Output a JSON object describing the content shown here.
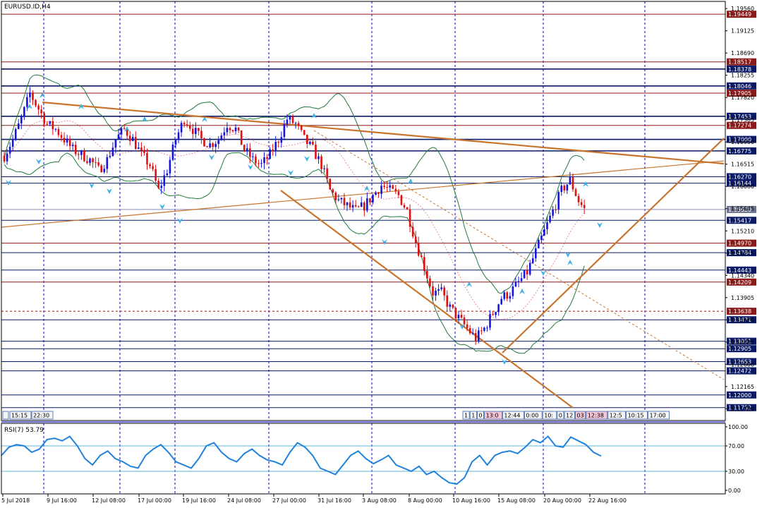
{
  "window": {
    "title": "EURUSD.ID,H4"
  },
  "colors": {
    "bull": "#1515dd",
    "bear": "#dd1111",
    "grid": "#0000cc",
    "trend": "#c7742e",
    "bands": "#1f7a3a",
    "rsi": "#1e82dc",
    "level_navy": "#0a1a66",
    "level_red": "#8b1a1a",
    "fractal": "#3bb0e8"
  },
  "price_axis": {
    "labels": [
      "1.19560",
      "1.19125",
      "1.18690",
      "1.18255",
      "1.17820",
      "1.17385",
      "1.16950",
      "1.16515",
      "1.16080",
      "1.15645",
      "1.15210",
      "1.14775",
      "1.14340",
      "1.13905",
      "1.13470",
      "1.13035",
      "1.12600",
      "1.12165",
      "1.11730"
    ]
  },
  "levels": [
    {
      "value": 1.19449,
      "label": "1.19449",
      "kind": "red"
    },
    {
      "value": 1.18517,
      "label": "1.18517",
      "kind": "red"
    },
    {
      "value": 1.18378,
      "label": "1.18378",
      "kind": "navy"
    },
    {
      "value": 1.18046,
      "label": "1.18046",
      "kind": "navy"
    },
    {
      "value": 1.17905,
      "label": "1.17905",
      "kind": "red"
    },
    {
      "value": 1.17453,
      "label": "1.17453",
      "kind": "navy"
    },
    {
      "value": 1.17274,
      "label": "1.17274",
      "kind": "red"
    },
    {
      "value": 1.17,
      "label": "1.17000",
      "kind": "navy"
    },
    {
      "value": 1.16775,
      "label": "1.16775",
      "kind": "navy"
    },
    {
      "value": 1.1627,
      "label": "1.16270",
      "kind": "navy"
    },
    {
      "value": 1.16144,
      "label": "1.16144",
      "kind": "navy"
    },
    {
      "value": 1.15629,
      "label": "1.15629",
      "kind": "gray"
    },
    {
      "value": 1.15417,
      "label": "1.15417",
      "kind": "navy"
    },
    {
      "value": 1.1497,
      "label": "1.14970",
      "kind": "red"
    },
    {
      "value": 1.14784,
      "label": "1.14784",
      "kind": "navy"
    },
    {
      "value": 1.14443,
      "label": "1.14443",
      "kind": "navy"
    },
    {
      "value": 1.14209,
      "label": "1.14209",
      "kind": "red"
    },
    {
      "value": 1.13638,
      "label": "1.13638",
      "kind": "reddash"
    },
    {
      "value": 1.13471,
      "label": "1.13471",
      "kind": "navy"
    },
    {
      "value": 1.13051,
      "label": "1.13051",
      "kind": "navy"
    },
    {
      "value": 1.12905,
      "label": "1.12905",
      "kind": "navy"
    },
    {
      "value": 1.12653,
      "label": "1.12653",
      "kind": "navy"
    },
    {
      "value": 1.12472,
      "label": "1.12472",
      "kind": "navy"
    },
    {
      "value": 1.12,
      "label": "1.12000",
      "kind": "navy"
    },
    {
      "value": 1.11752,
      "label": "1.11752",
      "kind": "navy"
    }
  ],
  "time_axis": {
    "labels": [
      "5 Jul 2018",
      "9 Jul 16:00",
      "12 Jul 08:00",
      "17 Jul 00:00",
      "19 Jul 16:00",
      "24 Jul 08:00",
      "27 Jul 00:00",
      "31 Jul 16:00",
      "3 Aug 08:00",
      "8 Aug 00:00",
      "10 Aug 16:00",
      "15 Aug 08:00",
      "20 Aug 00:00",
      "22 Aug 16:00"
    ]
  },
  "session_tabs": {
    "left": [
      "15:15",
      "22:30"
    ],
    "right": [
      "1",
      "1",
      "0",
      "13:0",
      "12:44",
      "0:00",
      "10:",
      "0",
      "12",
      "03",
      "12:38",
      "12:5",
      "10:15",
      "17:00"
    ]
  },
  "chart_data": [
    {
      "type": "candlestick",
      "title": "EURUSD.ID,H4",
      "symbol": "EURUSD.ID",
      "timeframe": "H4",
      "ylim": [
        1.115,
        1.197
      ],
      "x_ticks": [
        "5 Jul 2018",
        "9 Jul 16:00",
        "12 Jul 08:00",
        "17 Jul 00:00",
        "19 Jul 16:00",
        "24 Jul 08:00",
        "27 Jul 00:00",
        "31 Jul 16:00",
        "3 Aug 08:00",
        "8 Aug 00:00",
        "10 Aug 16:00",
        "15 Aug 08:00",
        "20 Aug 00:00",
        "22 Aug 16:00"
      ],
      "close_path": [
        [
          0,
          1.1668
        ],
        [
          3,
          1.17
        ],
        [
          6,
          1.174
        ],
        [
          9,
          1.179
        ],
        [
          12,
          1.176
        ],
        [
          15,
          1.173
        ],
        [
          18,
          1.172
        ],
        [
          21,
          1.17
        ],
        [
          24,
          1.168
        ],
        [
          27,
          1.167
        ],
        [
          30,
          1.166
        ],
        [
          33,
          1.164
        ],
        [
          36,
          1.166
        ],
        [
          39,
          1.17
        ],
        [
          42,
          1.172
        ],
        [
          45,
          1.17
        ],
        [
          48,
          1.167
        ],
        [
          51,
          1.165
        ],
        [
          54,
          1.16
        ],
        [
          57,
          1.164
        ],
        [
          60,
          1.17
        ],
        [
          63,
          1.174
        ],
        [
          66,
          1.172
        ],
        [
          69,
          1.17
        ],
        [
          72,
          1.169
        ],
        [
          75,
          1.17
        ],
        [
          78,
          1.173
        ],
        [
          81,
          1.172
        ],
        [
          84,
          1.168
        ],
        [
          87,
          1.166
        ],
        [
          90,
          1.165
        ],
        [
          93,
          1.167
        ],
        [
          96,
          1.17
        ],
        [
          99,
          1.174
        ],
        [
          102,
          1.173
        ],
        [
          105,
          1.17
        ],
        [
          108,
          1.168
        ],
        [
          111,
          1.165
        ],
        [
          114,
          1.16
        ],
        [
          117,
          1.158
        ],
        [
          120,
          1.157
        ],
        [
          123,
          1.156
        ],
        [
          126,
          1.157
        ],
        [
          129,
          1.159
        ],
        [
          132,
          1.161
        ],
        [
          135,
          1.16
        ],
        [
          138,
          1.159
        ],
        [
          141,
          1.156
        ],
        [
          144,
          1.15
        ],
        [
          147,
          1.145
        ],
        [
          150,
          1.14
        ],
        [
          153,
          1.14
        ],
        [
          156,
          1.137
        ],
        [
          159,
          1.135
        ],
        [
          162,
          1.133
        ],
        [
          165,
          1.131
        ],
        [
          168,
          1.133
        ],
        [
          171,
          1.136
        ],
        [
          174,
          1.139
        ],
        [
          177,
          1.14
        ],
        [
          180,
          1.142
        ],
        [
          183,
          1.144
        ],
        [
          186,
          1.148
        ],
        [
          189,
          1.152
        ],
        [
          192,
          1.156
        ],
        [
          195,
          1.16
        ],
        [
          198,
          1.162
        ],
        [
          201,
          1.158
        ],
        [
          203,
          1.1563
        ]
      ],
      "horizontal_levels": [
        1.19449,
        1.18517,
        1.18378,
        1.18046,
        1.17905,
        1.17453,
        1.17274,
        1.17,
        1.16775,
        1.1627,
        1.16144,
        1.15629,
        1.15417,
        1.1497,
        1.14784,
        1.14443,
        1.14209,
        1.13638,
        1.13471,
        1.13051,
        1.12905,
        1.12653,
        1.12472,
        1.12,
        1.11752
      ]
    },
    {
      "type": "line",
      "title": "RSI(7) 53.79",
      "series": [
        {
          "name": "RSI(7)",
          "last": 53.79
        }
      ],
      "ylim": [
        0,
        100
      ],
      "y_ticks": [
        "100.00",
        "70.00",
        "30.00",
        "0.00"
      ],
      "levels": [
        70,
        30
      ],
      "values": [
        55,
        68,
        72,
        70,
        60,
        65,
        80,
        82,
        78,
        85,
        70,
        50,
        40,
        55,
        62,
        50,
        45,
        38,
        35,
        55,
        65,
        72,
        60,
        45,
        40,
        35,
        50,
        70,
        75,
        60,
        50,
        45,
        58,
        65,
        55,
        48,
        45,
        40,
        60,
        75,
        68,
        55,
        35,
        30,
        25,
        40,
        55,
        62,
        50,
        42,
        48,
        55,
        40,
        35,
        30,
        38,
        25,
        30,
        20,
        12,
        10,
        20,
        45,
        55,
        40,
        55,
        60,
        62,
        58,
        68,
        80,
        75,
        85,
        70,
        68,
        84,
        78,
        72,
        60,
        54
      ]
    }
  ]
}
